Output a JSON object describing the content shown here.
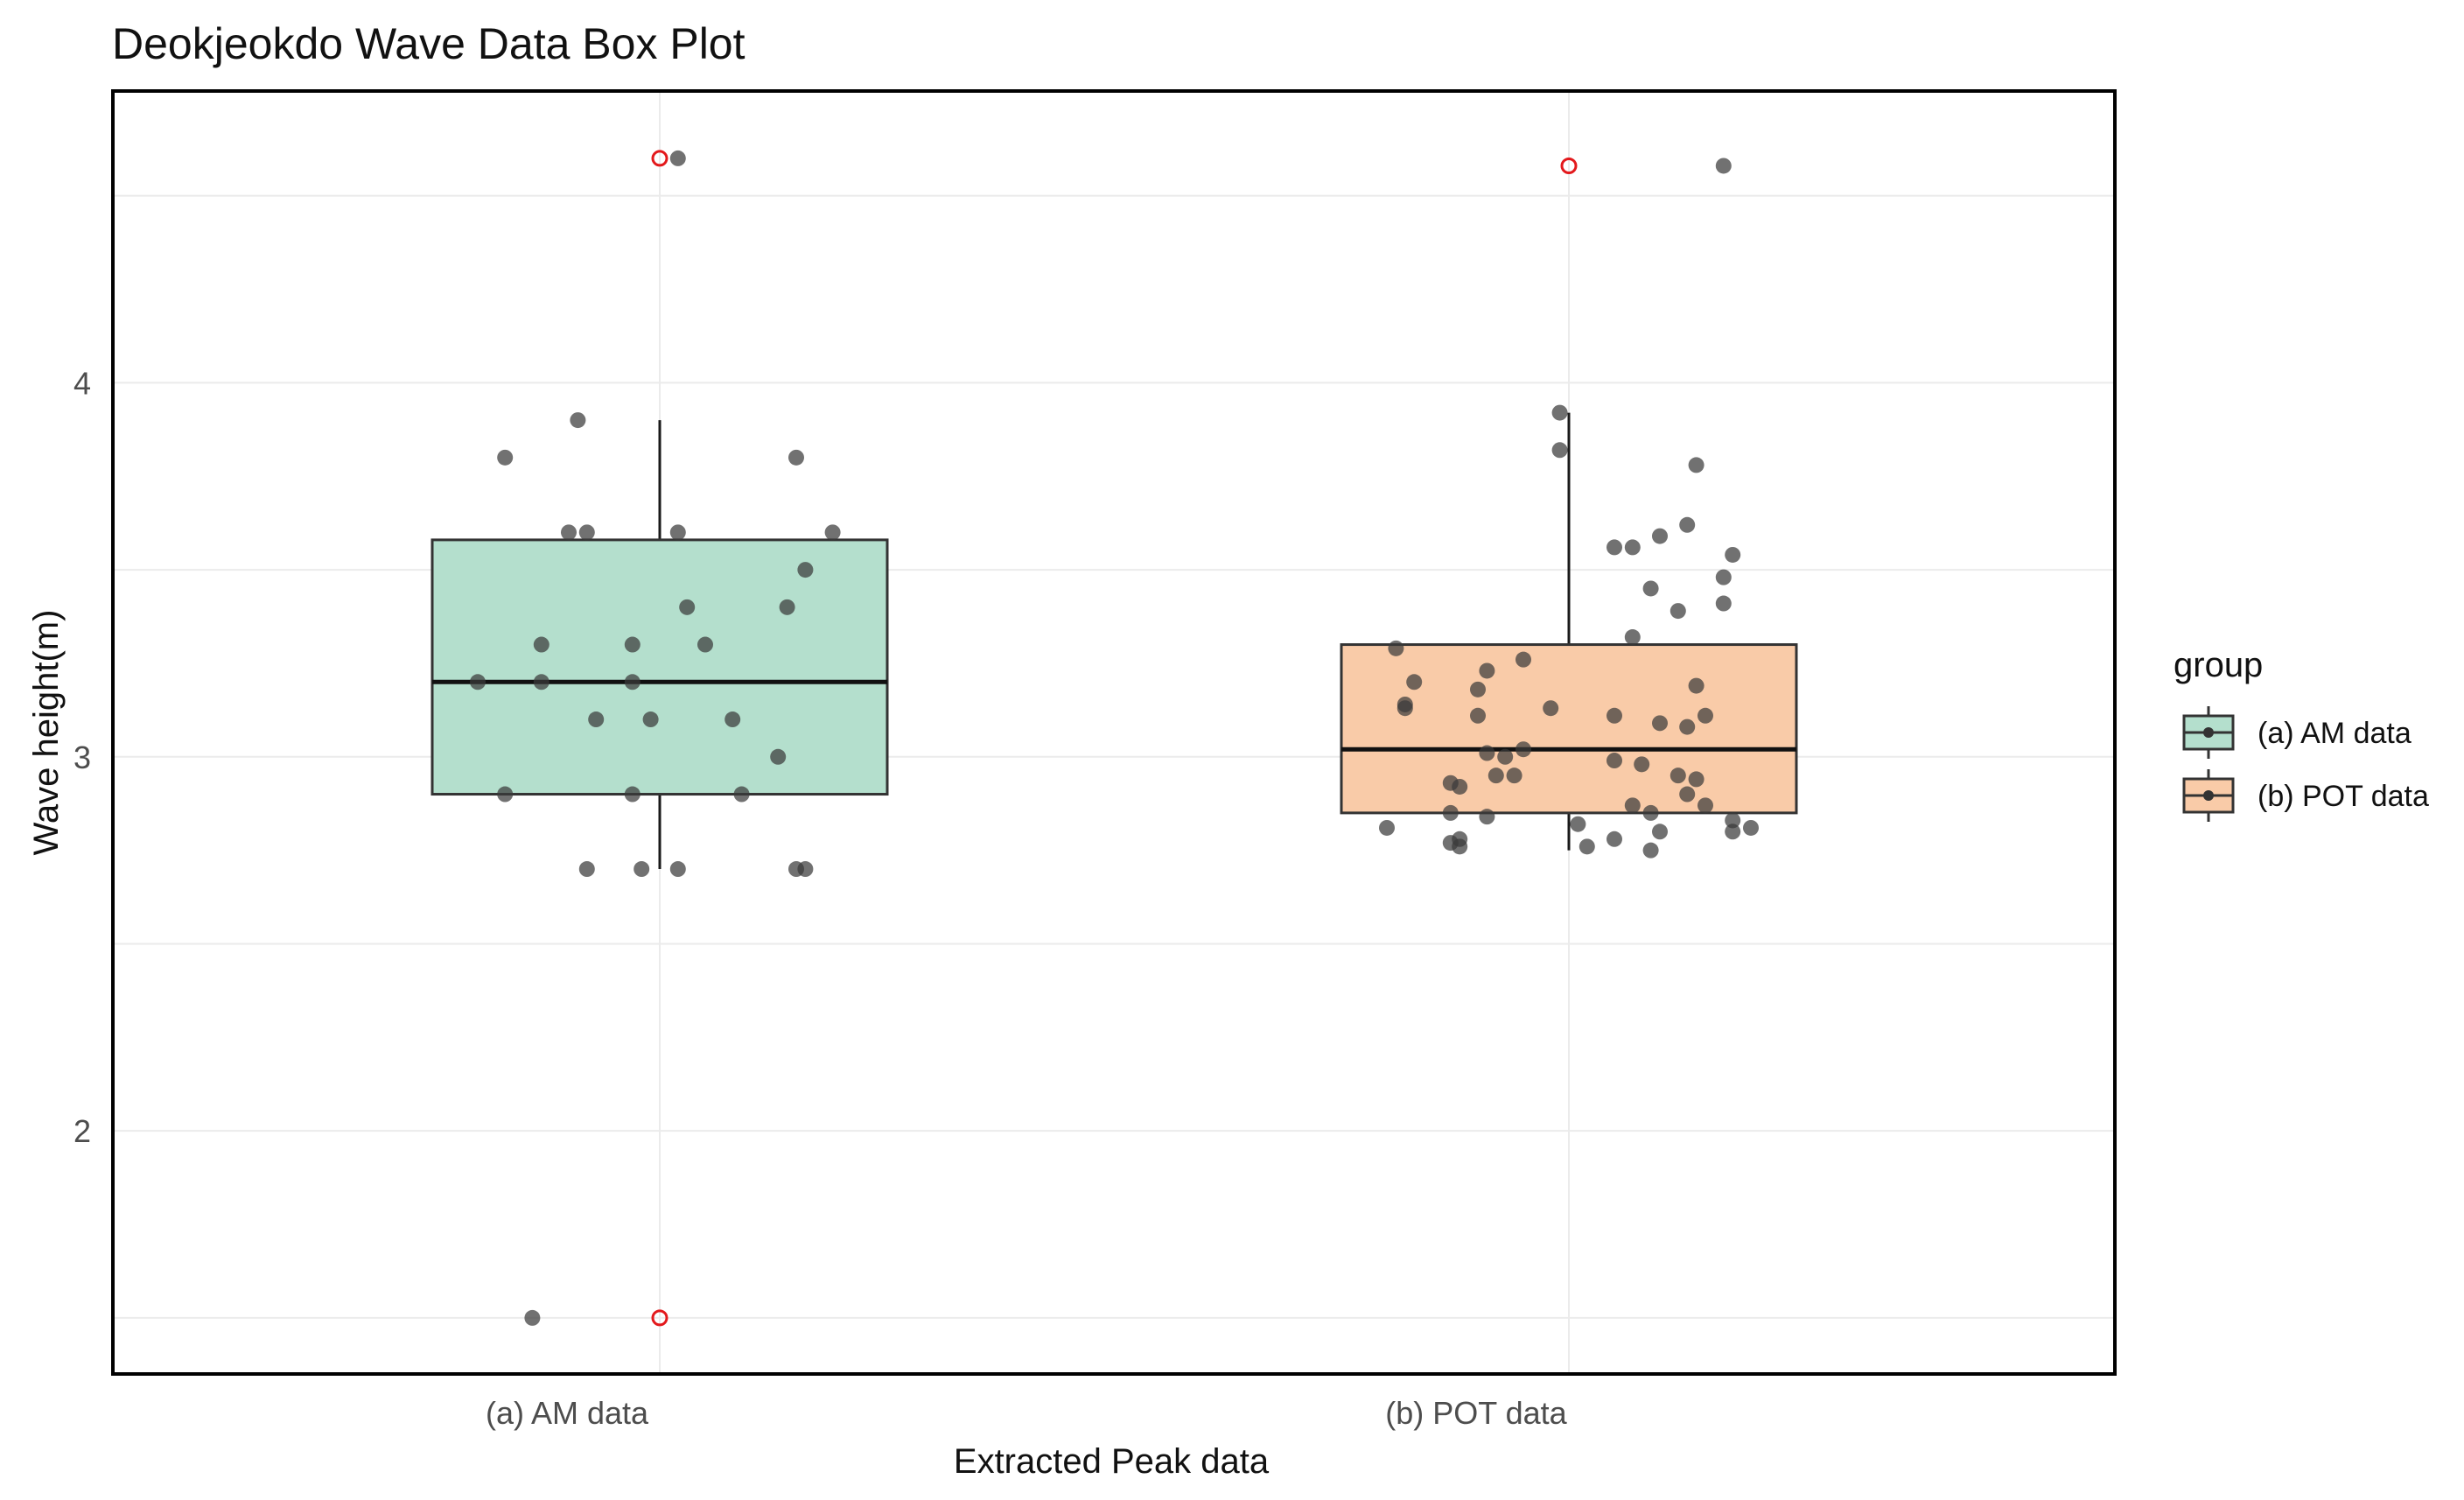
{
  "chart_data": {
    "type": "box",
    "title": "Deokjeokdo Wave Data Box Plot",
    "xlabel": "Extracted Peak data",
    "ylabel": "Wave height(m)",
    "ylim": [
      1.35,
      4.78
    ],
    "y_ticks": [
      2,
      3,
      4
    ],
    "y_gridlines": [
      1.5,
      2,
      2.5,
      3,
      3.5,
      4,
      4.5
    ],
    "grid": true,
    "legend_title": "group",
    "legend_position": "right",
    "outlier_color": "#e3191c",
    "jitter_color": "#3a3a3a",
    "categories": [
      "(a) AM data",
      "(b) POT data"
    ],
    "groups": [
      {
        "name": "(a) AM data",
        "fill": "#b4dfcd",
        "min": 2.7,
        "q1": 2.9,
        "median": 3.2,
        "q3": 3.58,
        "max": 3.9,
        "outliers": [
          4.6,
          1.5
        ],
        "points": [
          [
            0.02,
            4.6
          ],
          [
            -0.09,
            3.9
          ],
          [
            -0.17,
            3.8
          ],
          [
            0.15,
            3.8
          ],
          [
            -0.1,
            3.6
          ],
          [
            -0.08,
            3.6
          ],
          [
            0.02,
            3.6
          ],
          [
            0.19,
            3.6
          ],
          [
            0.16,
            3.5
          ],
          [
            0.03,
            3.4
          ],
          [
            0.14,
            3.4
          ],
          [
            -0.13,
            3.3
          ],
          [
            -0.03,
            3.3
          ],
          [
            0.05,
            3.3
          ],
          [
            -0.2,
            3.2
          ],
          [
            -0.13,
            3.2
          ],
          [
            -0.03,
            3.2
          ],
          [
            -0.07,
            3.1
          ],
          [
            -0.01,
            3.1
          ],
          [
            0.08,
            3.1
          ],
          [
            0.13,
            3.0
          ],
          [
            -0.17,
            2.9
          ],
          [
            -0.03,
            2.9
          ],
          [
            0.09,
            2.9
          ],
          [
            -0.08,
            2.7
          ],
          [
            -0.02,
            2.7
          ],
          [
            0.02,
            2.7
          ],
          [
            0.15,
            2.7
          ],
          [
            0.16,
            2.7
          ],
          [
            -0.14,
            1.5
          ]
        ]
      },
      {
        "name": "(b) POT data",
        "fill": "#f9cba8",
        "min": 2.75,
        "q1": 2.85,
        "median": 3.02,
        "q3": 3.3,
        "max": 3.92,
        "outliers": [
          4.58
        ],
        "points": [
          [
            0.17,
            4.58
          ],
          [
            -0.01,
            3.92
          ],
          [
            -0.01,
            3.82
          ],
          [
            0.14,
            3.78
          ],
          [
            0.13,
            3.62
          ],
          [
            0.1,
            3.59
          ],
          [
            0.18,
            3.54
          ],
          [
            0.05,
            3.56
          ],
          [
            0.07,
            3.56
          ],
          [
            0.17,
            3.48
          ],
          [
            0.09,
            3.45
          ],
          [
            0.17,
            3.41
          ],
          [
            0.12,
            3.39
          ],
          [
            0.07,
            3.32
          ],
          [
            -0.19,
            3.29
          ],
          [
            -0.05,
            3.26
          ],
          [
            -0.09,
            3.23
          ],
          [
            -0.17,
            3.2
          ],
          [
            -0.1,
            3.18
          ],
          [
            0.14,
            3.19
          ],
          [
            -0.18,
            3.14
          ],
          [
            -0.18,
            3.13
          ],
          [
            -0.02,
            3.13
          ],
          [
            -0.1,
            3.11
          ],
          [
            0.05,
            3.11
          ],
          [
            0.15,
            3.11
          ],
          [
            0.1,
            3.09
          ],
          [
            0.13,
            3.08
          ],
          [
            -0.05,
            3.02
          ],
          [
            -0.09,
            3.01
          ],
          [
            -0.07,
            3.0
          ],
          [
            0.05,
            2.99
          ],
          [
            0.08,
            2.98
          ],
          [
            -0.08,
            2.95
          ],
          [
            -0.06,
            2.95
          ],
          [
            0.12,
            2.95
          ],
          [
            0.14,
            2.94
          ],
          [
            -0.13,
            2.93
          ],
          [
            -0.12,
            2.92
          ],
          [
            0.13,
            2.9
          ],
          [
            0.07,
            2.87
          ],
          [
            0.15,
            2.87
          ],
          [
            -0.13,
            2.85
          ],
          [
            -0.09,
            2.84
          ],
          [
            0.09,
            2.85
          ],
          [
            0.18,
            2.83
          ],
          [
            -0.2,
            2.81
          ],
          [
            0.01,
            2.82
          ],
          [
            0.2,
            2.81
          ],
          [
            0.18,
            2.8
          ],
          [
            0.1,
            2.8
          ],
          [
            -0.12,
            2.78
          ],
          [
            0.05,
            2.78
          ],
          [
            -0.13,
            2.77
          ],
          [
            -0.12,
            2.76
          ],
          [
            0.02,
            2.76
          ],
          [
            0.09,
            2.75
          ]
        ]
      }
    ]
  }
}
